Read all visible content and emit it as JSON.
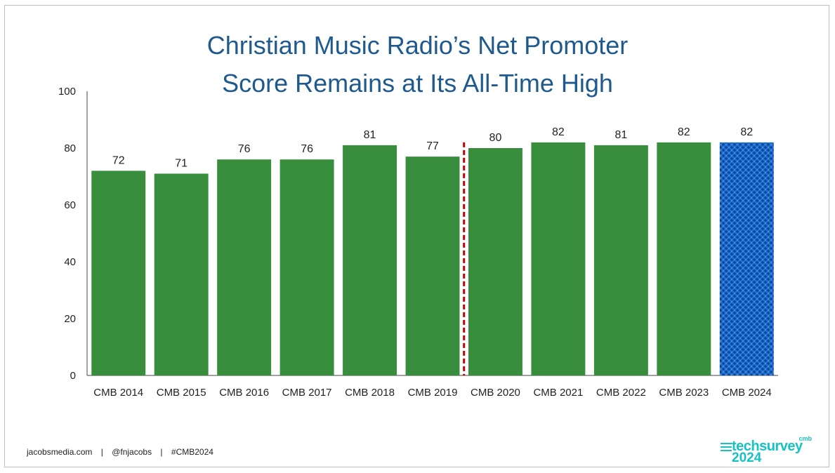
{
  "title_line1": "Christian Music Radio’s Net Promoter",
  "title_line2": "Score Remains at Its All-Time High",
  "colors": {
    "bar": "#388e3c",
    "highlight": "#1f6fd1",
    "divider": "#c00000",
    "title": "#1f5a8f",
    "brand": "#16c2c2"
  },
  "chart_data": {
    "type": "bar",
    "categories": [
      "CMB 2014",
      "CMB 2015",
      "CMB 2016",
      "CMB 2017",
      "CMB 2018",
      "CMB 2019",
      "CMB 2020",
      "CMB 2021",
      "CMB 2022",
      "CMB 2023",
      "CMB 2024"
    ],
    "values": [
      72,
      71,
      76,
      76,
      81,
      77,
      80,
      82,
      81,
      82,
      82
    ],
    "data_labels": [
      "72",
      "71",
      "76",
      "76",
      "81",
      "77",
      "80",
      "82",
      "81",
      "82",
      "82"
    ],
    "yticks": [
      "0",
      "20",
      "40",
      "60",
      "80",
      "100"
    ],
    "ylim": [
      0,
      100
    ],
    "highlight_category": "CMB 2024",
    "divider_between": [
      "CMB 2019",
      "CMB 2020"
    ],
    "grid": false,
    "legend": "none"
  },
  "footer": {
    "site": "jacobsmedia.com",
    "sep1": "|",
    "handle": "@fnjacobs",
    "sep2": "|",
    "hashtag": "#CMB2024"
  },
  "logo": {
    "superscript": "cmb",
    "name": "techsurvey",
    "year": "2024"
  }
}
